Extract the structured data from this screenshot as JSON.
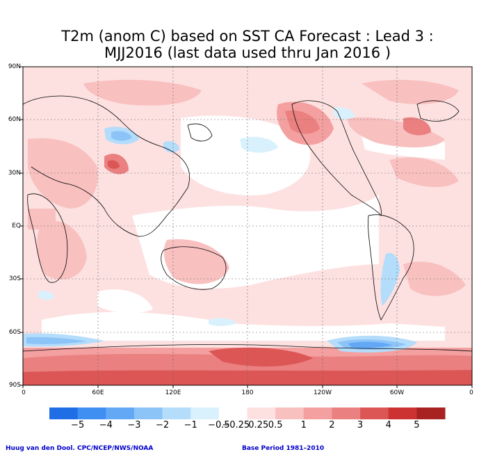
{
  "title_line1": "T2m (anom C) based on SST CA Forecast : Lead 3 :",
  "title_line2": "MJJ2016 (last data used thru Jan 2016 )",
  "lat_labels": [
    "90N",
    "60N",
    "30N",
    "EQ",
    "30S",
    "60S",
    "90S"
  ],
  "lon_labels": [
    "0",
    "60E",
    "120E",
    "180",
    "120W",
    "60W",
    "0"
  ],
  "colorbar": {
    "colors": [
      "#1f6ee6",
      "#3f8ef2",
      "#63a8f5",
      "#8dc4f8",
      "#b4dcfb",
      "#d8f1fd",
      "#ffffff",
      "#fde1e1",
      "#f9c0c0",
      "#f4a0a0",
      "#ea8080",
      "#dd5656",
      "#cc3232",
      "#a82222"
    ],
    "labels": [
      "−5",
      "−4",
      "−3",
      "−2",
      "−1",
      "−0.5",
      "−0.25",
      "0.25",
      "0.5",
      "1",
      "2",
      "3",
      "4",
      "5"
    ]
  },
  "credit_left": "Huug van den Dool. CPC/NCEP/NWS/NOAA",
  "credit_right": "Base Period 1981–2010"
}
